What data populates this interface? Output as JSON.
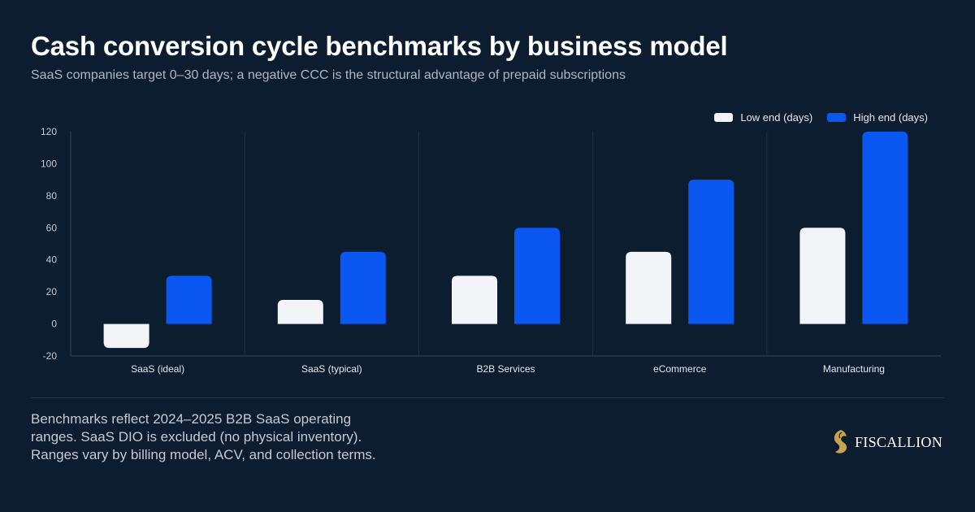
{
  "header": {
    "title": "Cash conversion cycle benchmarks by business model",
    "subtitle": "SaaS companies target 0–30 days; a negative CCC is the structural advantage of prepaid subscriptions"
  },
  "chart_data": {
    "type": "bar",
    "categories": [
      "SaaS (ideal)",
      "SaaS (typical)",
      "B2B Services",
      "eCommerce",
      "Manufacturing"
    ],
    "series": [
      {
        "name": "Low end (days)",
        "values": [
          -15,
          15,
          30,
          45,
          60
        ],
        "color": "#f3f4f7"
      },
      {
        "name": "High end (days)",
        "values": [
          30,
          45,
          60,
          90,
          120
        ],
        "color": "#0b57f2"
      }
    ],
    "ylim": [
      -20,
      120
    ],
    "yticks": [
      -20,
      0,
      20,
      40,
      60,
      80,
      100,
      120
    ],
    "grid": "vertical category separators",
    "legend": "top-right"
  },
  "footer": {
    "note": "Benchmarks reflect 2024–2025 B2B SaaS operating ranges. SaaS DIO is excluded (no physical inventory). Ranges vary by billing model, ACV, and collection terms.",
    "brand": "FISCALLION",
    "brand_icon": "gold-lion-logo"
  },
  "colors": {
    "background": "#0c1d2f",
    "accent_gold": "#c9a24a"
  }
}
